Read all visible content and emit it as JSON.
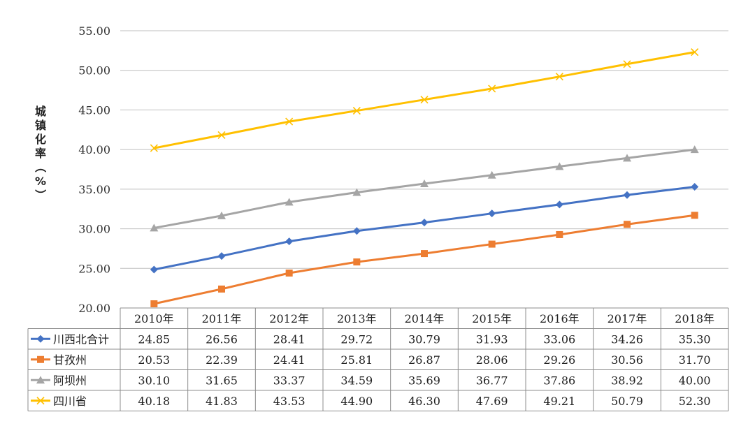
{
  "chart_data": {
    "type": "line",
    "ylabel": "城镇化率（%）",
    "ylim": [
      20,
      55
    ],
    "yticks": [
      "20.00",
      "25.00",
      "30.00",
      "35.00",
      "40.00",
      "45.00",
      "50.00",
      "55.00"
    ],
    "grid": true,
    "categories": [
      "2010年",
      "2011年",
      "2012年",
      "2013年",
      "2014年",
      "2015年",
      "2016年",
      "2017年",
      "2018年"
    ],
    "series": [
      {
        "name": "川西北合计",
        "color": "#4472C4",
        "marker": "diamond",
        "values": [
          24.85,
          26.56,
          28.41,
          29.72,
          30.79,
          31.93,
          33.06,
          34.26,
          35.3
        ],
        "labels": [
          "24.85",
          "26.56",
          "28.41",
          "29.72",
          "30.79",
          "31.93",
          "33.06",
          "34.26",
          "35.30"
        ]
      },
      {
        "name": "甘孜州",
        "color": "#ED7D31",
        "marker": "square",
        "values": [
          20.53,
          22.39,
          24.41,
          25.81,
          26.87,
          28.06,
          29.26,
          30.56,
          31.7
        ],
        "labels": [
          "20.53",
          "22.39",
          "24.41",
          "25.81",
          "26.87",
          "28.06",
          "29.26",
          "30.56",
          "31.70"
        ]
      },
      {
        "name": "阿坝州",
        "color": "#A5A5A5",
        "marker": "triangle",
        "values": [
          30.1,
          31.65,
          33.37,
          34.59,
          35.69,
          36.77,
          37.86,
          38.92,
          40.0
        ],
        "labels": [
          "30.10",
          "31.65",
          "33.37",
          "34.59",
          "35.69",
          "36.77",
          "37.86",
          "38.92",
          "40.00"
        ]
      },
      {
        "name": "四川省",
        "color": "#FFC000",
        "marker": "x",
        "values": [
          40.18,
          41.83,
          43.53,
          44.9,
          46.3,
          47.69,
          49.21,
          50.79,
          52.3
        ],
        "labels": [
          "40.18",
          "41.83",
          "43.53",
          "44.90",
          "46.30",
          "47.69",
          "49.21",
          "50.79",
          "52.30"
        ]
      }
    ]
  }
}
